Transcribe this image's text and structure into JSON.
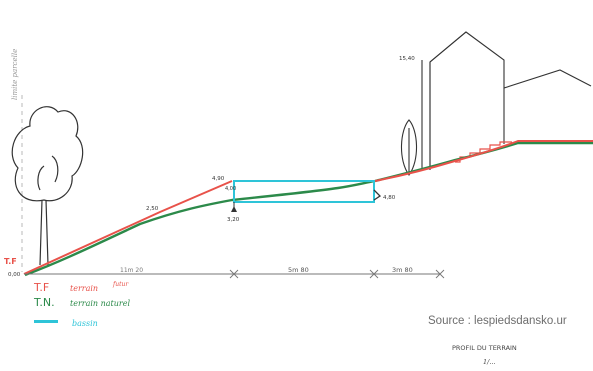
{
  "profile": {
    "labels": {
      "vertical_note": "limite parcelle",
      "tf_marker": "T.F",
      "origin_level": "0,00",
      "slope_mid": "2,50",
      "basin_top": "4,90",
      "basin_left": "4,00",
      "basin_bottom": "3,20",
      "basin_right": "4,80",
      "house_top": "15,40",
      "dim_left": "11m 20",
      "dim_mid": "5m 80",
      "dim_right": "3m 80"
    },
    "legend": [
      {
        "abbr": "T.F",
        "text": "terrain",
        "extra": "futur",
        "color": "#e8524a"
      },
      {
        "abbr": "T.N.",
        "text": "terrain naturel",
        "extra": "",
        "color": "#2c8a4a"
      },
      {
        "abbr": "",
        "text": "bassin",
        "extra": "",
        "color": "#2ec4d8"
      }
    ],
    "source": "Source : lespiedsdansko.ur",
    "title_line1": "PROFIL DU TERRAIN",
    "title_line2": "1/..."
  }
}
